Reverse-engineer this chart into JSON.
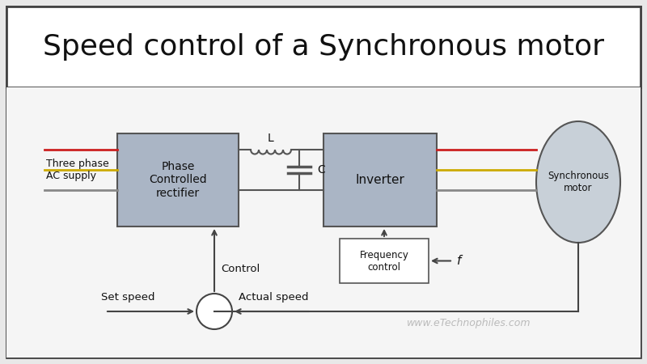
{
  "title": "Speed control of a Synchronous motor",
  "bg_outer": "#e8e8e8",
  "bg_inner": "#f5f5f5",
  "border_color": "#444444",
  "title_bg": "#ffffff",
  "box_fill": "#aab5c5",
  "box_edge": "#555555",
  "line_color": "#444444",
  "red_line": "#cc2020",
  "yellow_line": "#ccaa00",
  "gray_line": "#888888",
  "dc_line": "#555555",
  "watermark": "www.eTechnophiles.com",
  "watermark_color": "#bbbbbb",
  "rectifier_label": "Phase\nControlled\nrectifier",
  "inverter_label": "Inverter",
  "freq_label": "Frequency\ncontrol",
  "motor_label": "Synchronous\nmotor",
  "supply_label": "Three phase\nAC supply",
  "control_label": "Control",
  "set_speed_label": "Set speed",
  "actual_speed_label": "Actual speed",
  "L_label": "L",
  "C_label": "C",
  "f_label": "f"
}
